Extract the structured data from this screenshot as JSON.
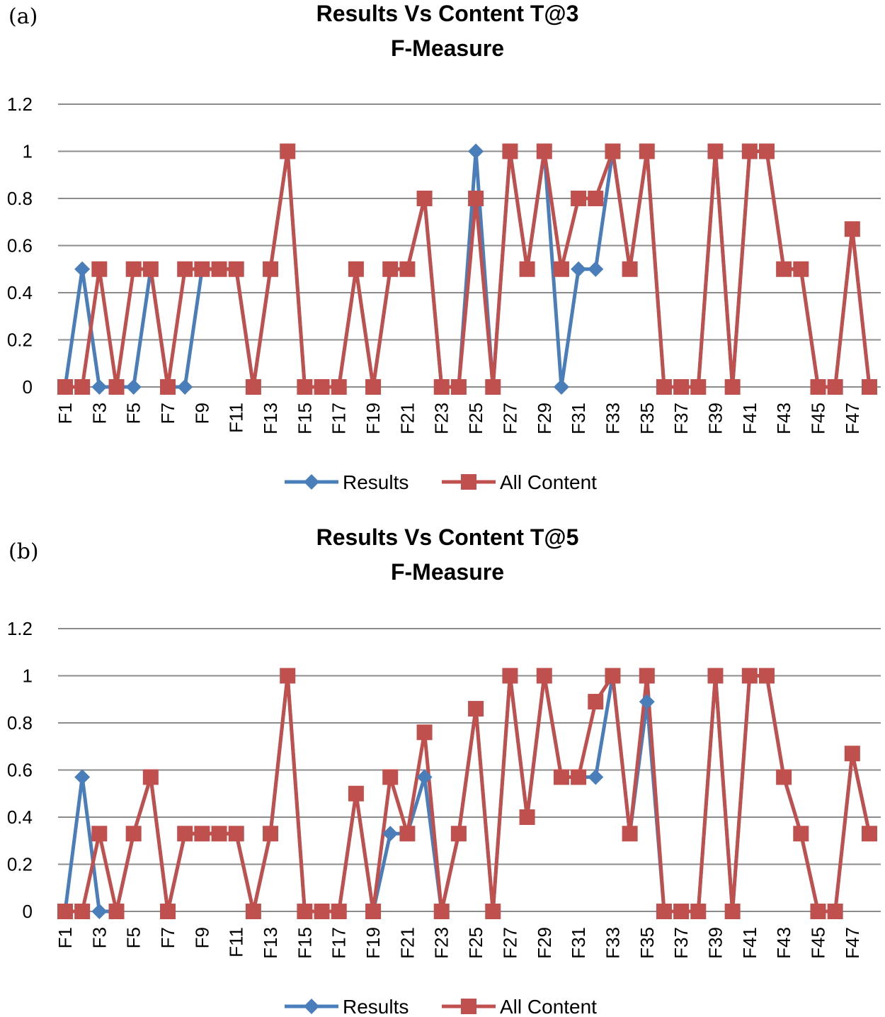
{
  "colors": {
    "results": "#4a7ebb",
    "all_content": "#c0504d",
    "grid": "#8c8c8c"
  },
  "chart_data": [
    {
      "panel_label": "(a)",
      "type": "line",
      "title_line1": "Results Vs Content T@3",
      "title_line2": "F-Measure",
      "xlabel": "",
      "ylabel": "",
      "ylim": [
        0,
        1.2
      ],
      "yticks": [
        "1.2",
        "1",
        "0.8",
        "0.6",
        "0.4",
        "0.2",
        "0"
      ],
      "tick_labels": [
        "F1",
        "F3",
        "F5",
        "F7",
        "F9",
        "F11",
        "F13",
        "F15",
        "F17",
        "F19",
        "F21",
        "F23",
        "F25",
        "F27",
        "F29",
        "F31",
        "F33",
        "F35",
        "F37",
        "F39",
        "F41",
        "F43",
        "F45",
        "F47"
      ],
      "legend_position": "bottom",
      "grid": true,
      "x": [
        "F1",
        "F2",
        "F3",
        "F4",
        "F5",
        "F6",
        "F7",
        "F8",
        "F9",
        "F10",
        "F11",
        "F12",
        "F13",
        "F14",
        "F15",
        "F16",
        "F17",
        "F18",
        "F19",
        "F20",
        "F21",
        "F22",
        "F23",
        "F24",
        "F25",
        "F26",
        "F27",
        "F28",
        "F29",
        "F30",
        "F31",
        "F32",
        "F33",
        "F34",
        "F35",
        "F36",
        "F37",
        "F38",
        "F39",
        "F40",
        "F41",
        "F42",
        "F43",
        "F44",
        "F45",
        "F46",
        "F47",
        "F48"
      ],
      "series": [
        {
          "name": "Results",
          "values": [
            0,
            0.5,
            0,
            0,
            0,
            0.5,
            0,
            0,
            0.5,
            0.5,
            0.5,
            0,
            0.5,
            1,
            0,
            0,
            0,
            0.5,
            0,
            0.5,
            0.5,
            0.8,
            0,
            0,
            1,
            0,
            1,
            0.5,
            1,
            0,
            0.5,
            0.5,
            1,
            0.5,
            1,
            0,
            0,
            0,
            1,
            0,
            1,
            1,
            0.5,
            0.5,
            0,
            0,
            0.67,
            0
          ]
        },
        {
          "name": "All Content",
          "values": [
            0,
            0,
            0.5,
            0,
            0.5,
            0.5,
            0,
            0.5,
            0.5,
            0.5,
            0.5,
            0,
            0.5,
            1,
            0,
            0,
            0,
            0.5,
            0,
            0.5,
            0.5,
            0.8,
            0,
            0,
            0.8,
            0,
            1,
            0.5,
            1,
            0.5,
            0.8,
            0.8,
            1,
            0.5,
            1,
            0,
            0,
            0,
            1,
            0,
            1,
            1,
            0.5,
            0.5,
            0,
            0,
            0.67,
            0
          ]
        }
      ]
    },
    {
      "panel_label": "(b)",
      "type": "line",
      "title_line1": "Results Vs Content T@5",
      "title_line2": "F-Measure",
      "xlabel": "",
      "ylabel": "",
      "ylim": [
        0,
        1.2
      ],
      "yticks": [
        "1.2",
        "1",
        "0.8",
        "0.6",
        "0.4",
        "0.2",
        "0"
      ],
      "tick_labels": [
        "F1",
        "F3",
        "F5",
        "F7",
        "F9",
        "F11",
        "F13",
        "F15",
        "F17",
        "F19",
        "F21",
        "F23",
        "F25",
        "F27",
        "F29",
        "F31",
        "F33",
        "F35",
        "F37",
        "F39",
        "F41",
        "F43",
        "F45",
        "F47"
      ],
      "legend_position": "bottom",
      "grid": true,
      "x": [
        "F1",
        "F2",
        "F3",
        "F4",
        "F5",
        "F6",
        "F7",
        "F8",
        "F9",
        "F10",
        "F11",
        "F12",
        "F13",
        "F14",
        "F15",
        "F16",
        "F17",
        "F18",
        "F19",
        "F20",
        "F21",
        "F22",
        "F23",
        "F24",
        "F25",
        "F26",
        "F27",
        "F28",
        "F29",
        "F30",
        "F31",
        "F32",
        "F33",
        "F34",
        "F35",
        "F36",
        "F37",
        "F38",
        "F39",
        "F40",
        "F41",
        "F42",
        "F43",
        "F44",
        "F45",
        "F46",
        "F47",
        "F48"
      ],
      "series": [
        {
          "name": "Results",
          "values": [
            0,
            0.57,
            0,
            0,
            0.33,
            0.57,
            0,
            0.33,
            0.33,
            0.33,
            0.33,
            0,
            0.33,
            1,
            0,
            0,
            0,
            0.5,
            0,
            0.33,
            0.33,
            0.57,
            0,
            0.33,
            0.86,
            0,
            1,
            0.4,
            1,
            0.57,
            0.57,
            0.57,
            1,
            0.33,
            0.89,
            0,
            0,
            0,
            1,
            0,
            1,
            1,
            0.57,
            0.33,
            0,
            0,
            0.67,
            0.33
          ]
        },
        {
          "name": "All Content",
          "values": [
            0,
            0,
            0.33,
            0,
            0.33,
            0.57,
            0,
            0.33,
            0.33,
            0.33,
            0.33,
            0,
            0.33,
            1,
            0,
            0,
            0,
            0.5,
            0,
            0.57,
            0.33,
            0.76,
            0,
            0.33,
            0.86,
            0,
            1,
            0.4,
            1,
            0.57,
            0.57,
            0.89,
            1,
            0.33,
            1,
            0,
            0,
            0,
            1,
            0,
            1,
            1,
            0.57,
            0.33,
            0,
            0,
            0.67,
            0.33
          ]
        }
      ]
    }
  ]
}
